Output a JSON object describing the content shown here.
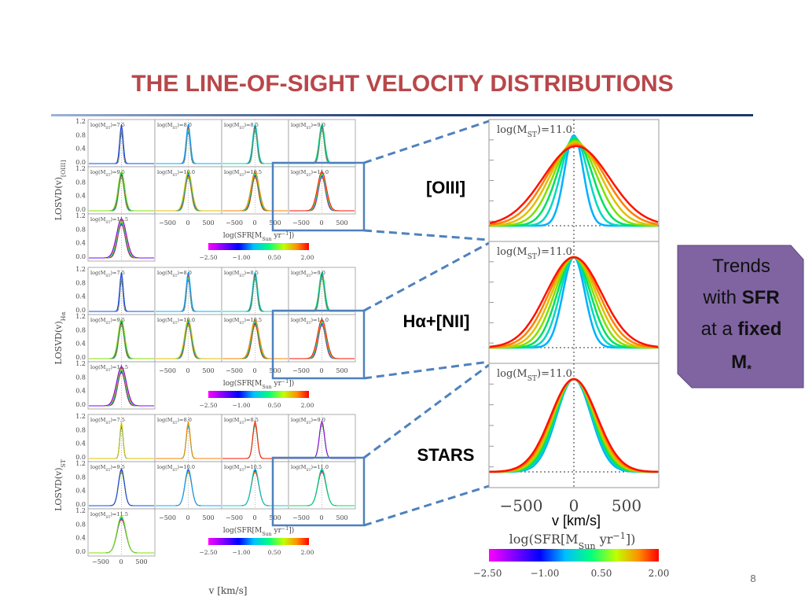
{
  "title": "THE LINE-OF-SIGHT VELOCITY DISTRIBUTIONS",
  "page_number": "8",
  "callout": {
    "line1": "Trends",
    "with": "with ",
    "sfr": "SFR",
    "at": "at a ",
    "fixed": "fixed",
    "m": "M",
    "star": "*"
  },
  "rows": [
    {
      "label": "[OIII]",
      "ylabel": "LOSVD(v)",
      "ysub": "[OIII]"
    },
    {
      "label": "Hα+[NII]",
      "ylabel": "LOSVD(v)",
      "ysub": "Hα"
    },
    {
      "label": "STARS",
      "ylabel": "LOSVD(v)",
      "ysub": "ST"
    }
  ],
  "small_panels": {
    "prefix": "log(M",
    "sub": "ST",
    "suffix": ")=",
    "masses": [
      "7.5",
      "8.0",
      "8.5",
      "9.0",
      "9.5",
      "10.0",
      "10.5",
      "11.0",
      "11.5"
    ],
    "yticks": [
      "1.2",
      "0.8",
      "0.4",
      "0.0"
    ],
    "xticks": [
      "−500",
      "0",
      "500"
    ],
    "xlabel": "v [km/s]"
  },
  "colorbar": {
    "prefix": "log(SFR[M",
    "sub": "Sun",
    "mid": " yr",
    "sup": "−1",
    "suffix": "])",
    "ticks": [
      "−2.50",
      "−1.00",
      "0.50",
      "2.00"
    ]
  },
  "big_panel": {
    "prefix": "log(M",
    "sub": "ST",
    "suffix": ")=11.0",
    "xticks": [
      "−500",
      "0",
      "500"
    ],
    "xlabel": "v [km/s]"
  }
}
